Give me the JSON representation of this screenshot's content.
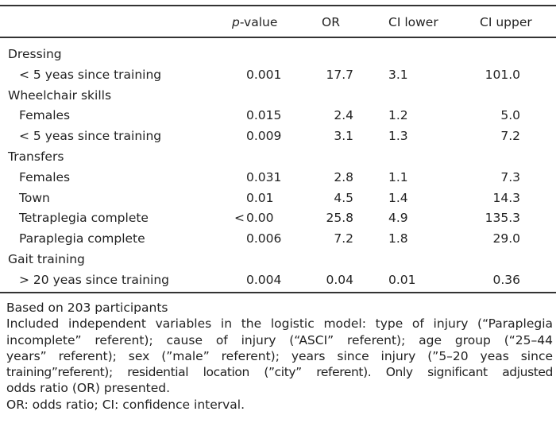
{
  "header": {
    "label": "",
    "p_prefix": "p",
    "p_suffix": "-value",
    "or": "OR",
    "ci_lower": "CI lower",
    "ci_upper": "CI upper"
  },
  "rows": [
    {
      "type": "group",
      "label": "Dressing"
    },
    {
      "type": "item",
      "label": "< 5 yeas since training",
      "p": "0.001",
      "or": "17.7",
      "lo": "3.1",
      "up": "101.0"
    },
    {
      "type": "group",
      "label": "Wheelchair skills"
    },
    {
      "type": "item",
      "label": "Females",
      "p": "0.015",
      "or": "2.4",
      "lo": "1.2",
      "up": "5.0"
    },
    {
      "type": "item",
      "label": "< 5 yeas since training",
      "p": "0.009",
      "or": "3.1",
      "lo": "1.3",
      "up": "7.2"
    },
    {
      "type": "group",
      "label": "Transfers"
    },
    {
      "type": "item",
      "label": "Females",
      "p": "0.031",
      "or": "2.8",
      "lo": "1.1",
      "up": "7.3"
    },
    {
      "type": "item",
      "label": "Town",
      "p": "0.01",
      "or": "4.5",
      "lo": "1.4",
      "up": "14.3"
    },
    {
      "type": "item",
      "label": "Tetraplegia complete",
      "p_lt": "<",
      "p": "0.00",
      "or": "25.8",
      "lo": "4.9",
      "up": "135.3"
    },
    {
      "type": "item",
      "label": "Paraplegia complete",
      "p": "0.006",
      "or": "7.2",
      "lo": "1.8",
      "up": "29.0"
    },
    {
      "type": "group",
      "label": "Gait training"
    },
    {
      "type": "item",
      "label": "> 20 yeas since training",
      "p": "0.004",
      "or": "0.04",
      "lo": "0.01",
      "up": "0.36"
    }
  ],
  "notes": [
    "Based on 203 participants",
    "Included independent variables in the logistic model: type of injury (“Paraplegia",
    "incomplete” referent); cause of injury (“ASCI” referent); age group (“25–44",
    "years” referent); sex (”male” referent); years since injury (”5–20 yeas since",
    "training”referent); residential location (”city” referent). Only significant adjusted",
    "odds ratio (OR) presented.",
    "OR: odds ratio; CI: confidence interval."
  ]
}
